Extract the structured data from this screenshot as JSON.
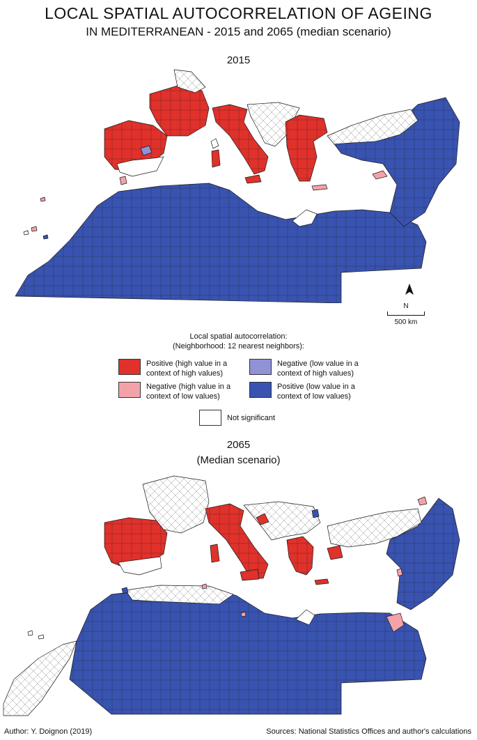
{
  "title": {
    "line1": "LOCAL SPATIAL AUTOCORRELATION OF AGEING",
    "line2": "IN MEDITERRANEAN - 2015 and 2065 (median scenario)"
  },
  "maps": [
    {
      "year": "2015",
      "subtitle": ""
    },
    {
      "year": "2065",
      "subtitle": "(Median scenario)"
    }
  ],
  "north_arrow": "N",
  "scale_bar": "500 km",
  "legend": {
    "title_line1": "Local spatial autocorrelation:",
    "title_line2": "(Neighborhood: 12 nearest neighbors):",
    "items": [
      {
        "label_line1": "Positive (high value in a",
        "label_line2": "context of high values)",
        "color": "#e0312b"
      },
      {
        "label_line1": "Negative (low value in a",
        "label_line2": "context of high values)",
        "color": "#8f93d6"
      },
      {
        "label_line1": "Negative (high value in a",
        "label_line2": "context of low values)",
        "color": "#f4a2aa"
      },
      {
        "label_line1": "Positive (low value in a",
        "label_line2": "context of low values)",
        "color": "#3953b0"
      },
      {
        "label_line1": "Not significant",
        "label_line2": "",
        "color": "#ffffff"
      }
    ]
  },
  "footer": {
    "author": "Author: Y. Doignon (2019)",
    "sources": "Sources: National Statistics Offices and author's calculations"
  }
}
